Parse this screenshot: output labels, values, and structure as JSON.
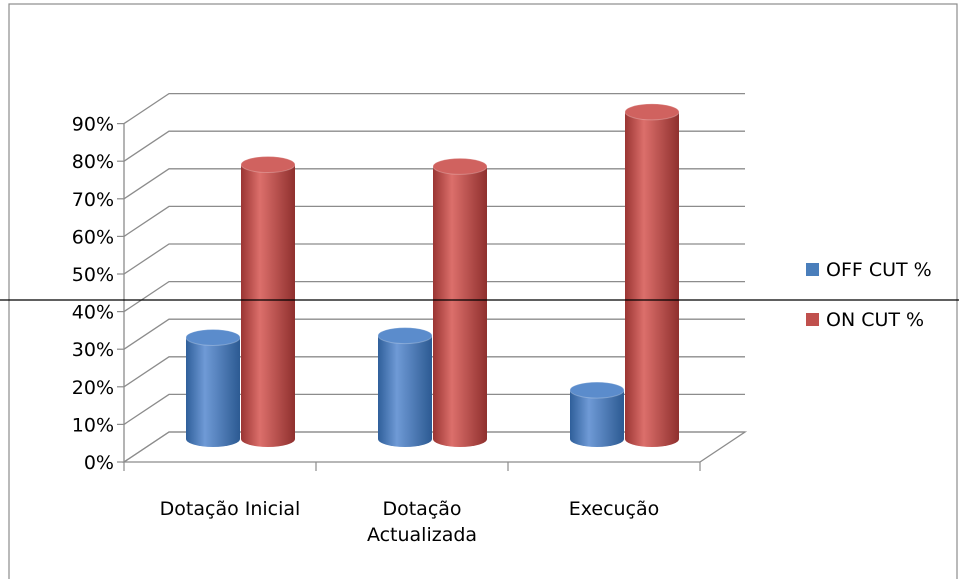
{
  "chart_data": {
    "type": "bar",
    "style": "3d-cylinder",
    "title": "",
    "xlabel": "",
    "ylabel": "",
    "ylim": [
      0,
      90
    ],
    "yticks": [
      "0%",
      "10%",
      "20%",
      "30%",
      "40%",
      "50%",
      "60%",
      "70%",
      "80%",
      "90%"
    ],
    "categories": [
      {
        "lines": [
          "Dotação Inicial"
        ]
      },
      {
        "lines": [
          "Dotação",
          "Actualizada"
        ]
      },
      {
        "lines": [
          "Execução"
        ]
      }
    ],
    "series": [
      {
        "name": "OFF CUT %",
        "color": "#4a7ebb",
        "values": [
          27,
          27.5,
          13
        ]
      },
      {
        "name": "ON CUT %",
        "color": "#c0504d",
        "values": [
          73,
          72.5,
          87
        ]
      }
    ],
    "grid": true,
    "legend": "right"
  }
}
